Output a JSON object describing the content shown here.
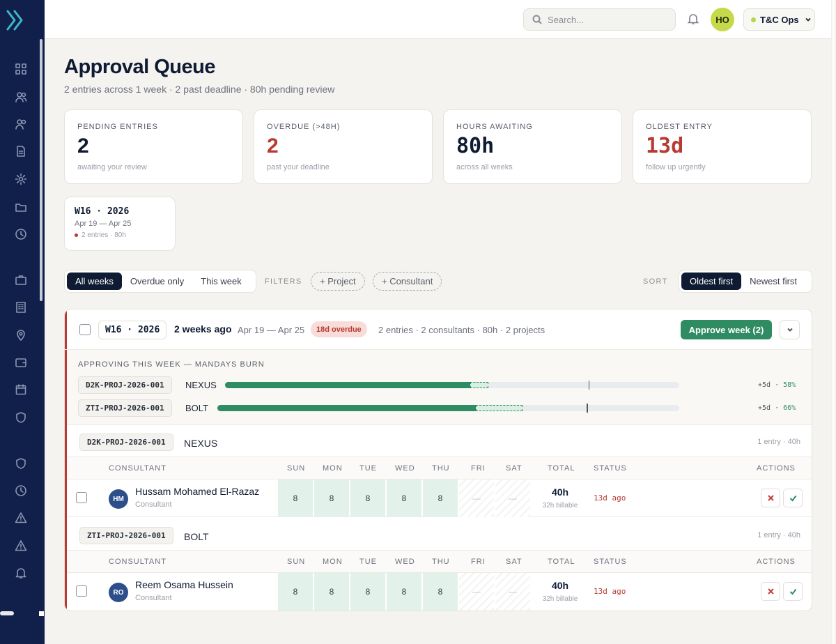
{
  "topbar": {
    "search_placeholder": "Search...",
    "user_initials": "HO",
    "org_name": "T&C Ops"
  },
  "header": {
    "title": "Approval Queue",
    "subtitle": "2 entries across 1 week · 2 past deadline · 80h pending review"
  },
  "kpis": [
    {
      "label": "PENDING ENTRIES",
      "value": "2",
      "note": "awaiting your review"
    },
    {
      "label": "OVERDUE (>48H)",
      "value": "2",
      "note": "past your deadline"
    },
    {
      "label": "HOURS AWAITING",
      "value": "80h",
      "note": "across all weeks"
    },
    {
      "label": "OLDEST ENTRY",
      "value": "13d",
      "note": "follow up urgently"
    }
  ],
  "week_card": {
    "week": "W16 · 2026",
    "range": "Apr 19 — Apr 25",
    "meta": "2 entries · 80h"
  },
  "filters": {
    "week_options": [
      "All weeks",
      "Overdue only",
      "This week"
    ],
    "filters_label": "FILTERS",
    "chips": [
      "+ Project",
      "+ Consultant"
    ],
    "sort_label": "SORT",
    "sort_options": [
      "Oldest first",
      "Newest first"
    ]
  },
  "week_panel": {
    "week": "W16 · 2026",
    "ago": "2 weeks ago",
    "range": "Apr 19 — Apr 25",
    "overdue_badge": "18d overdue",
    "summary": "2 entries · 2 consultants · 80h · 2 projects",
    "approve_label": "Approve week (2)",
    "burn_title": "APPROVING THIS WEEK — MANDAYS BURN",
    "burn": [
      {
        "code": "D2K-PROJ-2026-001",
        "name": "NEXUS",
        "used_pct": 54,
        "pending_pct": 4,
        "mark_pct": 80,
        "delta": "+5d",
        "pct_label": "58%"
      },
      {
        "code": "ZTI-PROJ-2026-001",
        "name": "BOLT",
        "used_pct": 56,
        "pending_pct": 10,
        "mark_pct": 80,
        "delta": "+5d",
        "pct_label": "66%"
      }
    ],
    "columns": {
      "consultant": "CONSULTANT",
      "days": [
        "SUN",
        "MON",
        "TUE",
        "WED",
        "THU",
        "FRI",
        "SAT"
      ],
      "total": "TOTAL",
      "status": "STATUS",
      "actions": "ACTIONS"
    },
    "projects": [
      {
        "code": "D2K-PROJ-2026-001",
        "name": "NEXUS",
        "meta": "1 entry · 40h",
        "entry": {
          "initials": "HM",
          "name": "Hussam Mohamed El-Razaz",
          "role": "Consultant",
          "days": [
            "8",
            "8",
            "8",
            "8",
            "8",
            "—",
            "—"
          ],
          "total": "40h",
          "billable": "32h billable",
          "status": "13d ago"
        }
      },
      {
        "code": "ZTI-PROJ-2026-001",
        "name": "BOLT",
        "meta": "1 entry · 40h",
        "entry": {
          "initials": "RO",
          "name": "Reem Osama Hussein",
          "role": "Consultant",
          "days": [
            "8",
            "8",
            "8",
            "8",
            "8",
            "—",
            "—"
          ],
          "total": "40h",
          "billable": "32h billable",
          "status": "13d ago"
        }
      }
    ]
  },
  "colors": {
    "accent": "#2e8b62",
    "danger": "#b83a32",
    "sidebar": "#10204a",
    "avatar": "#c6d94a"
  }
}
